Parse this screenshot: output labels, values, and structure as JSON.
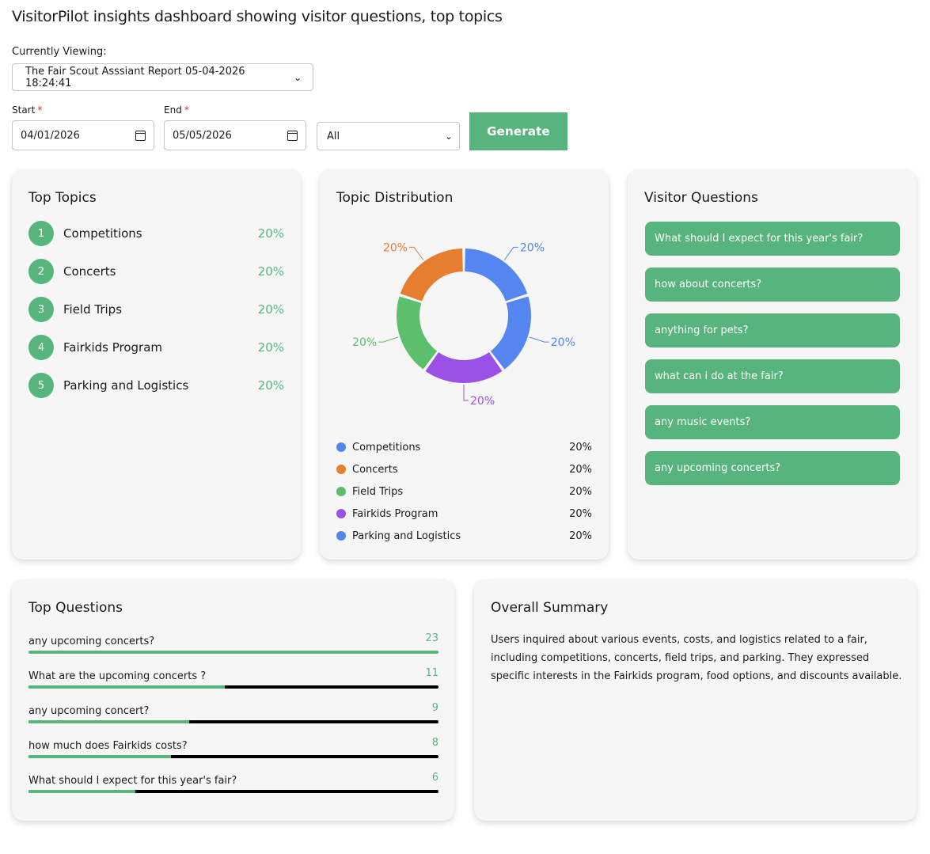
{
  "page": {
    "title": "VisitorPilot insights dashboard showing visitor questions, top topics"
  },
  "controls": {
    "viewing_label": "Currently Viewing:",
    "report_selected": "The Fair Scout Asssiant Report 05-04-2026 18:24:41",
    "start_label": "Start",
    "end_label": "End",
    "required_mark": "*",
    "start_value": "04/01/2026",
    "end_value": "05/05/2026",
    "filter_selected": "All",
    "generate_label": "Generate"
  },
  "top_topics": {
    "title": "Top Topics",
    "items": [
      {
        "rank": "1",
        "name": "Competitions",
        "pct": "20%"
      },
      {
        "rank": "2",
        "name": "Concerts",
        "pct": "20%"
      },
      {
        "rank": "3",
        "name": "Field Trips",
        "pct": "20%"
      },
      {
        "rank": "4",
        "name": "Fairkids Program",
        "pct": "20%"
      },
      {
        "rank": "5",
        "name": "Parking and Logistics",
        "pct": "20%"
      }
    ]
  },
  "topic_distribution": {
    "title": "Topic Distribution",
    "legend": [
      {
        "name": "Competitions",
        "pct": "20%",
        "color": "#5585ee"
      },
      {
        "name": "Concerts",
        "pct": "20%",
        "color": "#e67e30"
      },
      {
        "name": "Field Trips",
        "pct": "20%",
        "color": "#5cbf6b"
      },
      {
        "name": "Fairkids Program",
        "pct": "20%",
        "color": "#9b51e6"
      },
      {
        "name": "Parking and Logistics",
        "pct": "20%",
        "color": "#5585ee"
      }
    ]
  },
  "chart_data": {
    "type": "pie",
    "variant": "donut",
    "categories": [
      "Competitions",
      "Parking and Logistics",
      "Fairkids Program",
      "Field Trips",
      "Concerts"
    ],
    "values": [
      20,
      20,
      20,
      20,
      20
    ],
    "labels": [
      "20%",
      "20%",
      "20%",
      "20%",
      "20%"
    ],
    "colors": [
      "#5585ee",
      "#5585ee",
      "#9b51e6",
      "#5cbf6b",
      "#e67e30"
    ],
    "legend": "bottom"
  },
  "visitor_questions": {
    "title": "Visitor Questions",
    "items": [
      "What should I expect for this year's fair?",
      "how about concerts?",
      "anything for pets?",
      "what can i do at the fair?",
      "any music events?",
      "any upcoming concerts?"
    ]
  },
  "top_questions": {
    "title": "Top Questions",
    "items": [
      {
        "text": "any upcoming concerts?",
        "count": "23",
        "fraction": 1.0
      },
      {
        "text": "What are the upcoming concerts ?",
        "count": "11",
        "fraction": 0.478
      },
      {
        "text": "any upcoming concert?",
        "count": "9",
        "fraction": 0.391
      },
      {
        "text": "how much does Fairkids costs?",
        "count": "8",
        "fraction": 0.348
      },
      {
        "text": "What should I expect for this year's fair?",
        "count": "6",
        "fraction": 0.261
      }
    ]
  },
  "summary": {
    "title": "Overall Summary",
    "text": "Users inquired about various events, costs, and logistics related to a fair, including competitions, concerts, field trips, and parking. They expressed specific interests in the Fairkids program, food options, and discounts available."
  },
  "icons": {
    "select_chevron": "chevron-down-icon",
    "date_picker": "calendar-icon"
  }
}
